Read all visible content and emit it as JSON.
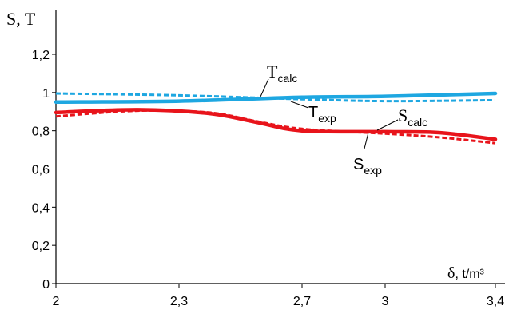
{
  "chart_data": {
    "type": "line",
    "ylabel": "S, T",
    "xlabel_symbol": "δ",
    "xlabel_unit": ", t/m³",
    "x_ticks": [
      "2",
      "2,3",
      "2,7",
      "3",
      "3,4"
    ],
    "y_ticks": [
      "0",
      "0,2",
      "0,4",
      "0,6",
      "0,8",
      "1",
      "1,2"
    ],
    "ylim": [
      0,
      1.2
    ],
    "grid": false,
    "series": [
      {
        "name_main": "T",
        "name_sub": "calc",
        "color": "#1ea7e1",
        "style": "solid",
        "points": [
          [
            2,
            0.95
          ],
          [
            2.3,
            0.955
          ],
          [
            2.7,
            0.975
          ],
          [
            3,
            0.98
          ],
          [
            3.4,
            0.995
          ]
        ]
      },
      {
        "name_main": "T",
        "name_sub": "exp",
        "color": "#1ea7e1",
        "style": "dashed",
        "points": [
          [
            2,
            0.995
          ],
          [
            2.3,
            0.985
          ],
          [
            2.7,
            0.965
          ],
          [
            3,
            0.955
          ],
          [
            3.4,
            0.96
          ]
        ]
      },
      {
        "name_main": "S",
        "name_sub": "calc",
        "color": "#e8141b",
        "style": "solid",
        "points": [
          [
            2,
            0.895
          ],
          [
            2.2,
            0.91
          ],
          [
            2.4,
            0.89
          ],
          [
            2.55,
            0.845
          ],
          [
            2.7,
            0.8
          ],
          [
            3,
            0.795
          ],
          [
            3.2,
            0.79
          ],
          [
            3.4,
            0.755
          ]
        ]
      },
      {
        "name_main": "S",
        "name_sub": "exp",
        "color": "#e8141b",
        "style": "dashed",
        "points": [
          [
            2,
            0.875
          ],
          [
            2.2,
            0.905
          ],
          [
            2.4,
            0.895
          ],
          [
            2.55,
            0.85
          ],
          [
            2.7,
            0.81
          ],
          [
            3,
            0.785
          ],
          [
            3.2,
            0.765
          ],
          [
            3.4,
            0.735
          ]
        ]
      }
    ]
  }
}
